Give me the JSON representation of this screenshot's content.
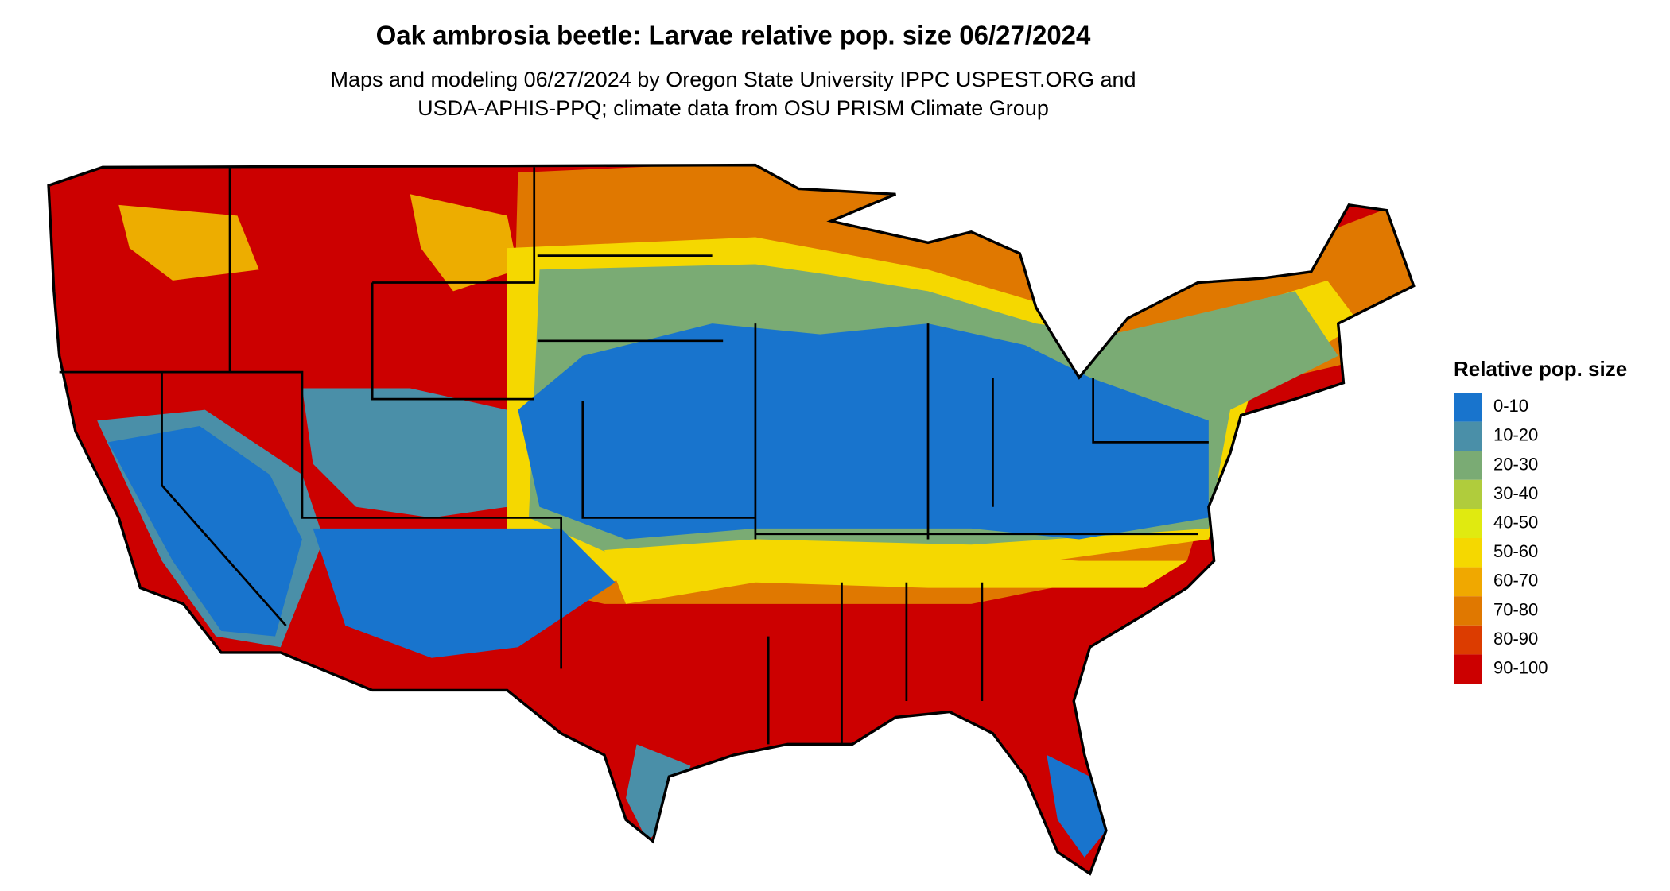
{
  "title": "Oak ambrosia beetle: Larvae relative pop. size 06/27/2024",
  "subtitle": [
    "Maps and modeling 06/27/2024 by Oregon State University IPPC USPEST.ORG and",
    "USDA-APHIS-PPQ; climate data from OSU PRISM Climate Group"
  ],
  "legend": {
    "title": "Relative pop. size",
    "items": [
      {
        "label": "0-10",
        "color": "#1874cd"
      },
      {
        "label": "10-20",
        "color": "#4a8fa8"
      },
      {
        "label": "20-30",
        "color": "#7aab74"
      },
      {
        "label": "30-40",
        "color": "#b0cc3c"
      },
      {
        "label": "40-50",
        "color": "#e0ea10"
      },
      {
        "label": "50-60",
        "color": "#f5d800"
      },
      {
        "label": "60-70",
        "color": "#f0a800"
      },
      {
        "label": "70-80",
        "color": "#e07800"
      },
      {
        "label": "80-90",
        "color": "#dc3c00"
      },
      {
        "label": "90-100",
        "color": "#cc0000"
      }
    ]
  }
}
